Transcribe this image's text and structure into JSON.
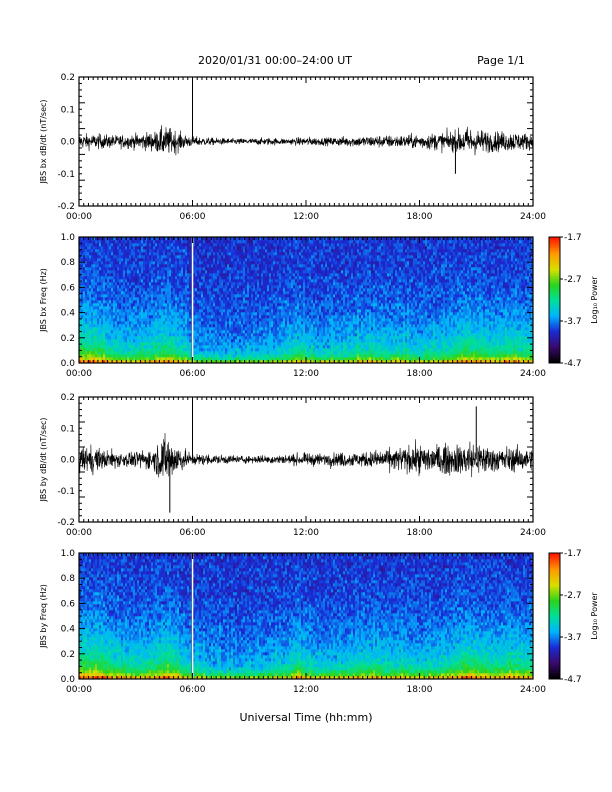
{
  "header": {
    "title": "2020/01/31  00:00–24:00 UT",
    "page": "Page 1/1"
  },
  "xaxis": {
    "label": "Universal Time (hh:mm)",
    "tick_labels": [
      "00:00",
      "06:00",
      "12:00",
      "18:00",
      "24:00"
    ],
    "range_hours": [
      0,
      24
    ]
  },
  "colorbar": {
    "label": "Log₁₀ Power",
    "tick_labels": [
      "-1.7",
      "-2.7",
      "-3.7",
      "-4.7"
    ],
    "range": [
      -4.7,
      -1.7
    ],
    "colors": [
      "#000000",
      "#3a0a6e",
      "#1a2bd6",
      "#00b4ff",
      "#00e09a",
      "#2ad41c",
      "#d8e000",
      "#ff9a00",
      "#ff1a00"
    ]
  },
  "chart_data": [
    {
      "type": "line",
      "ylabel": "JBS bx dB/dt (nT/sec)",
      "ylim": [
        -0.2,
        0.2
      ],
      "yticks": [
        "0.2",
        "0.1",
        "0.0",
        "-0.1",
        "-0.2"
      ],
      "x_unit": "hours",
      "envelope": {
        "x": [
          0,
          1,
          2,
          3,
          4,
          4.5,
          5,
          5.5,
          6,
          7,
          8,
          9,
          10,
          11,
          12,
          13,
          14,
          15,
          16,
          17,
          18,
          19,
          20,
          20.5,
          21,
          22,
          23,
          24
        ],
        "amplitude": [
          0.03,
          0.03,
          0.025,
          0.03,
          0.04,
          0.06,
          0.05,
          0.03,
          0.02,
          0.015,
          0.012,
          0.012,
          0.015,
          0.012,
          0.018,
          0.015,
          0.02,
          0.022,
          0.025,
          0.025,
          0.03,
          0.035,
          0.045,
          0.06,
          0.05,
          0.04,
          0.04,
          0.03
        ]
      },
      "spikes": [
        {
          "x": 6.0,
          "y": 0.2
        },
        {
          "x": 19.9,
          "y": -0.1
        }
      ]
    },
    {
      "type": "heatmap",
      "ylabel": "JBS bx Freq (Hz)",
      "ylim": [
        0.0,
        1.0
      ],
      "yticks": [
        "1.0",
        "0.8",
        "0.6",
        "0.4",
        "0.2",
        "0.0"
      ],
      "zlim": [
        -4.7,
        -1.7
      ],
      "activity": {
        "x": [
          0,
          1,
          2,
          3,
          4,
          4.5,
          5,
          5.5,
          6,
          7,
          8,
          9,
          10,
          11,
          11.5,
          12,
          13,
          14,
          15,
          16,
          17,
          18,
          19,
          20,
          20.5,
          21,
          22,
          23,
          24
        ],
        "level": [
          0.8,
          0.75,
          0.55,
          0.5,
          0.6,
          0.75,
          0.7,
          0.5,
          0.35,
          0.3,
          0.25,
          0.3,
          0.35,
          0.45,
          0.6,
          0.45,
          0.4,
          0.45,
          0.55,
          0.5,
          0.5,
          0.45,
          0.5,
          0.65,
          0.8,
          0.7,
          0.6,
          0.65,
          0.6
        ]
      },
      "gap_hour": 6.0
    },
    {
      "type": "line",
      "ylabel": "JBS by dB/dt (nT/sec)",
      "ylim": [
        -0.2,
        0.2
      ],
      "yticks": [
        "0.2",
        "0.1",
        "0.0",
        "-0.1",
        "-0.2"
      ],
      "x_unit": "hours",
      "envelope": {
        "x": [
          0,
          0.5,
          1,
          2,
          3,
          4,
          4.5,
          5,
          5.5,
          6,
          7,
          8,
          9,
          10,
          11,
          12,
          13,
          14,
          15,
          16,
          17,
          18,
          19,
          20,
          20.5,
          21,
          22,
          23,
          24
        ],
        "amplitude": [
          0.05,
          0.06,
          0.045,
          0.035,
          0.03,
          0.05,
          0.1,
          0.09,
          0.04,
          0.025,
          0.02,
          0.018,
          0.015,
          0.018,
          0.02,
          0.025,
          0.025,
          0.03,
          0.03,
          0.04,
          0.05,
          0.06,
          0.06,
          0.06,
          0.08,
          0.07,
          0.05,
          0.05,
          0.04
        ]
      },
      "spikes": [
        {
          "x": 6.0,
          "y": 0.2
        },
        {
          "x": 4.8,
          "y": -0.17
        },
        {
          "x": 21.0,
          "y": 0.17
        }
      ]
    },
    {
      "type": "heatmap",
      "ylabel": "JBS by Freq (Hz)",
      "ylim": [
        0.0,
        1.0
      ],
      "yticks": [
        "1.0",
        "0.8",
        "0.6",
        "0.4",
        "0.2",
        "0.0"
      ],
      "zlim": [
        -4.7,
        -1.7
      ],
      "activity": {
        "x": [
          0,
          1,
          2,
          3,
          4,
          4.5,
          5,
          5.5,
          6,
          7,
          8,
          9,
          10,
          11,
          11.5,
          12,
          13,
          14,
          15,
          16,
          17,
          18,
          19,
          20,
          20.5,
          21,
          22,
          23,
          24
        ],
        "level": [
          0.9,
          0.85,
          0.65,
          0.6,
          0.7,
          0.8,
          0.75,
          0.55,
          0.4,
          0.35,
          0.3,
          0.35,
          0.4,
          0.5,
          0.65,
          0.5,
          0.45,
          0.5,
          0.6,
          0.55,
          0.55,
          0.5,
          0.55,
          0.7,
          0.85,
          0.75,
          0.65,
          0.7,
          0.65
        ]
      },
      "gap_hour": 6.0
    }
  ]
}
